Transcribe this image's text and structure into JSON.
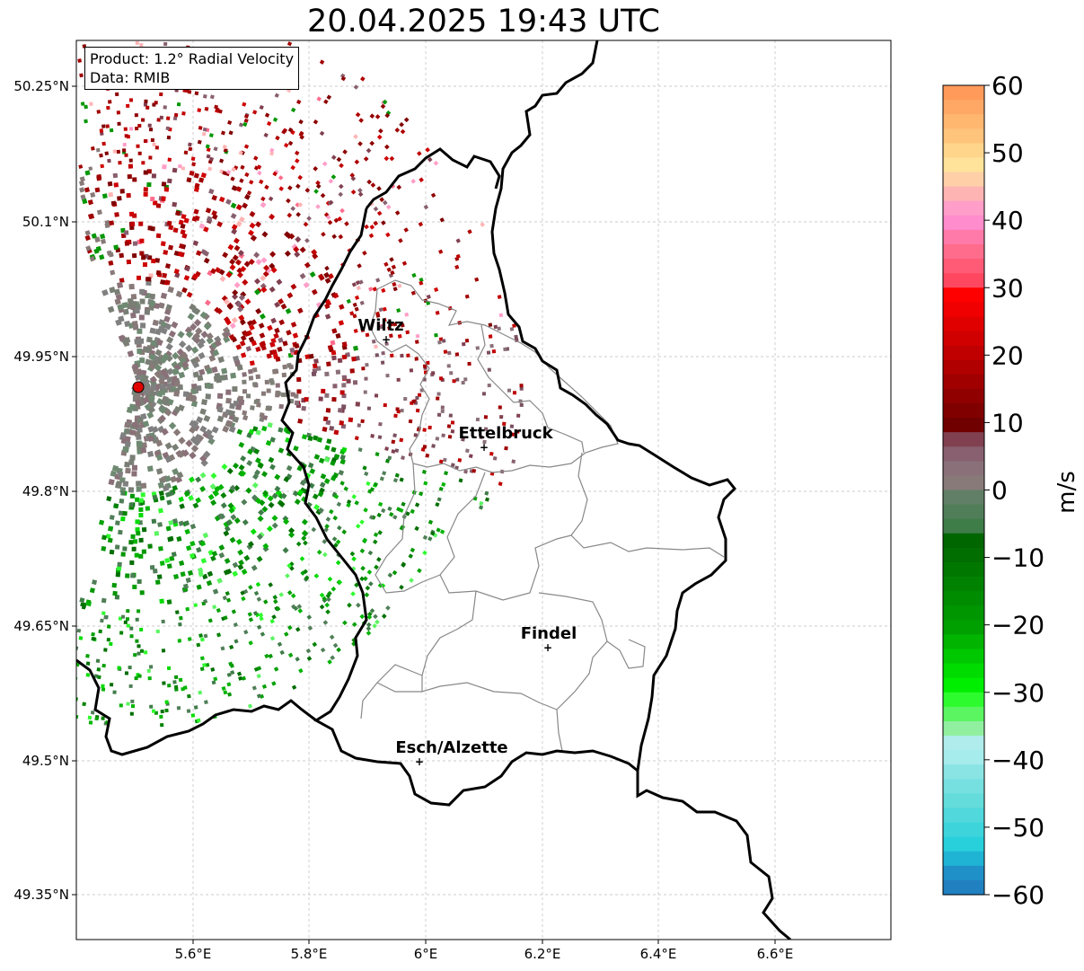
{
  "title": "20.04.2025 19:43 UTC",
  "info": {
    "product_line": "Product: 1.2° Radial Velocity",
    "data_line": "Data: RMIB"
  },
  "axes": {
    "x_ticks": [
      "5.6°E",
      "5.8°E",
      "6°E",
      "6.2°E",
      "6.4°E",
      "6.6°E"
    ],
    "y_ticks": [
      "50.25°N",
      "50.1°N",
      "49.95°N",
      "49.8°N",
      "49.65°N",
      "49.5°N",
      "49.35°N"
    ]
  },
  "cities": [
    {
      "name": "Wiltz"
    },
    {
      "name": "Ettelbruck"
    },
    {
      "name": "Findel"
    },
    {
      "name": "Esch/Alzette"
    }
  ],
  "radar_site": {
    "marker": "red-circle"
  },
  "colorbar": {
    "label": "m/s",
    "ticks": [
      "60",
      "50",
      "40",
      "30",
      "20",
      "10",
      "0",
      "−10",
      "−20",
      "−30",
      "−40",
      "−50",
      "−60"
    ],
    "range": [
      -60,
      60
    ]
  }
}
